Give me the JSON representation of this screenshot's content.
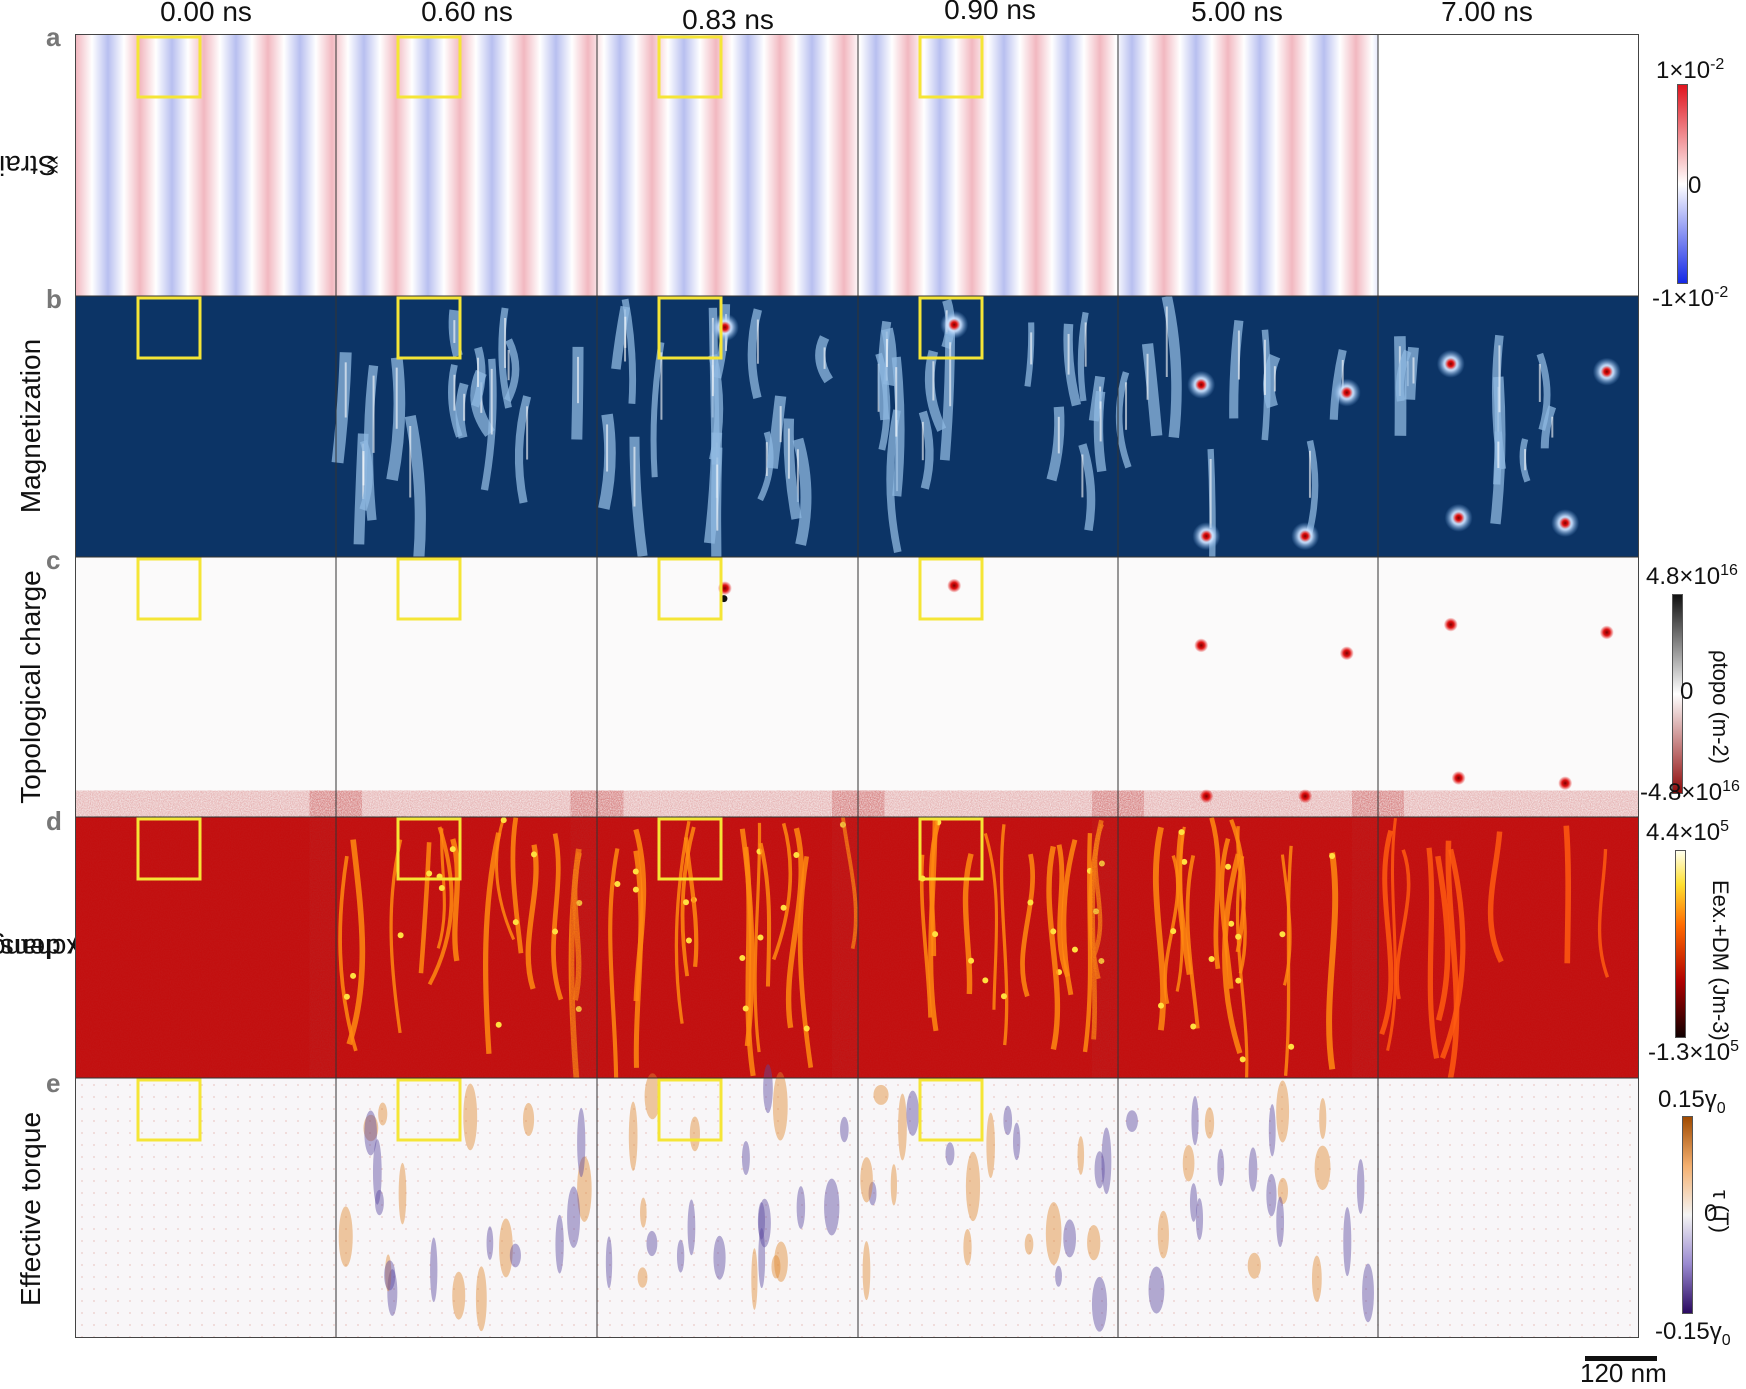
{
  "time_labels": [
    "0.00 ns",
    "0.60 ns",
    "0.83 ns",
    "0.90 ns",
    "5.00 ns",
    "7.00 ns"
  ],
  "rows": [
    {
      "letter": "a",
      "title": "Strain ε",
      "title_sub": "xx",
      "colorbar": {
        "top": "1×10",
        "top_sup": "-2",
        "mid": "0",
        "bottom": "-1×10",
        "bottom_sup": "-2",
        "label": ""
      }
    },
    {
      "letter": "b",
      "title": "Magnetization"
    },
    {
      "letter": "c",
      "title": "Topological charge",
      "colorbar": {
        "top": "4.8×10",
        "top_sup": "16",
        "mid": "0",
        "bottom": "-4.8×10",
        "bottom_sup": "16",
        "label": "ρtopo (m-2)"
      }
    },
    {
      "letter": "d",
      "title_line1": "Exchange + DM",
      "title_line2": "energy density",
      "colorbar": {
        "top": "4.4×10",
        "top_sup": "5",
        "bottom": "-1.3×10",
        "bottom_sup": "5",
        "label": "Eex.+DM (Jm-3)"
      }
    },
    {
      "letter": "e",
      "title": "Effective torque",
      "colorbar": {
        "top": "0.15γ",
        "top_sub": "0",
        "mid": "0",
        "bottom": "-0.15γ",
        "bottom_sub": "0",
        "label": "τ (T)"
      }
    }
  ],
  "scale_bar_label": "120 nm",
  "colors": {
    "strain_pos": "#f2b8c0",
    "strain_neg": "#b8bff0",
    "magnetization": "#0c3466",
    "magnetization_light": "#8fb8e0",
    "energy": "#c40b0b",
    "energy_hot": "#ffe040",
    "torque_pos": "#e08a30",
    "torque_neg": "#5a4aa0",
    "highlight_box": "#f5e536",
    "skyrmion": "#d81010"
  }
}
